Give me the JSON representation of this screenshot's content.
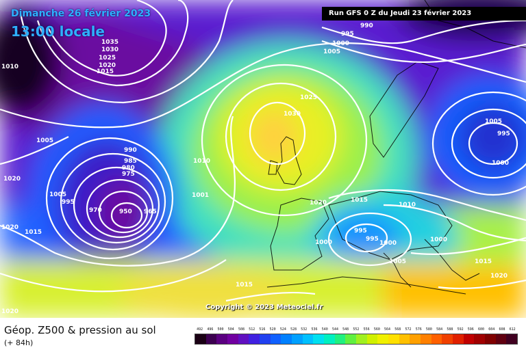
{
  "header": {
    "date": "Dimanche 26 février 2023",
    "time": "13:00 locale",
    "run": "Run GFS 0 Z du Jeudi 23 février 2023"
  },
  "copyright": "Copyright © 2023 Meteociel.fr",
  "legend": {
    "title": "Géop. Z500 & pression au sol",
    "subtitle": "(+ 84h)",
    "ticks": [
      "492",
      "496",
      "500",
      "504",
      "508",
      "512",
      "516",
      "520",
      "524",
      "528",
      "532",
      "536",
      "540",
      "544",
      "548",
      "552",
      "556",
      "560",
      "564",
      "568",
      "572",
      "576",
      "580",
      "584",
      "588",
      "592",
      "596",
      "600",
      "604",
      "608",
      "612"
    ],
    "colors": [
      "#1a0014",
      "#3c0050",
      "#5a0080",
      "#7000a0",
      "#6010c0",
      "#4020e0",
      "#2040f0",
      "#1060ff",
      "#0080ff",
      "#00a0ff",
      "#00c0ff",
      "#00e0f0",
      "#00f0c0",
      "#20f080",
      "#60f040",
      "#a0f020",
      "#d0f000",
      "#f0f000",
      "#ffe000",
      "#ffc000",
      "#ffa000",
      "#ff8000",
      "#ff6000",
      "#f04000",
      "#e02000",
      "#c00000",
      "#a00000",
      "#800000",
      "#600010",
      "#400020"
    ]
  },
  "isobar_labels": [
    {
      "text": "990"
    },
    {
      "text": "995"
    },
    {
      "text": "1000"
    },
    {
      "text": "1005"
    },
    {
      "text": "1035"
    },
    {
      "text": "1030"
    },
    {
      "text": "1025"
    },
    {
      "text": "1020"
    },
    {
      "text": "1015"
    },
    {
      "text": "1010"
    },
    {
      "text": "1025"
    },
    {
      "text": "1030"
    },
    {
      "text": "1005"
    },
    {
      "text": "990"
    },
    {
      "text": "985"
    },
    {
      "text": "980"
    },
    {
      "text": "975"
    },
    {
      "text": "1005"
    },
    {
      "text": "995"
    },
    {
      "text": "970"
    },
    {
      "text": "950"
    },
    {
      "text": "965"
    },
    {
      "text": "1010"
    },
    {
      "text": "1001"
    },
    {
      "text": "1020"
    },
    {
      "text": "1015"
    },
    {
      "text": "1010"
    },
    {
      "text": "1005"
    },
    {
      "text": "995"
    },
    {
      "text": "1000"
    },
    {
      "text": "1020"
    },
    {
      "text": "1020"
    },
    {
      "text": "1015"
    },
    {
      "text": "1020"
    },
    {
      "text": "1000"
    },
    {
      "text": "995"
    },
    {
      "text": "995"
    },
    {
      "text": "1000"
    },
    {
      "text": "1000"
    },
    {
      "text": "1005"
    },
    {
      "text": "1015"
    },
    {
      "text": "1020"
    },
    {
      "text": "1015"
    }
  ]
}
